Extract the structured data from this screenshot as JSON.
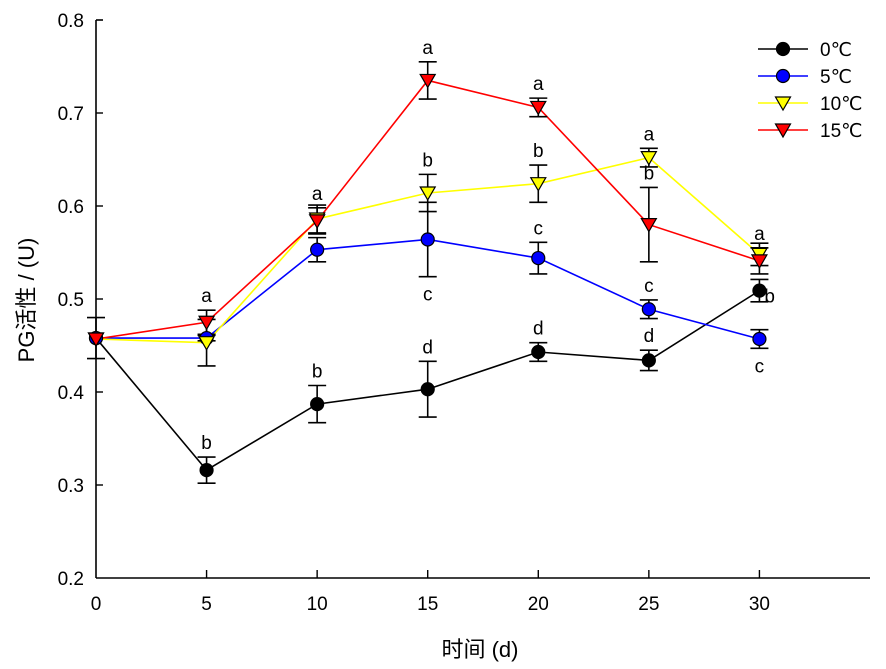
{
  "chart_data": {
    "type": "line",
    "title": "",
    "xlabel": "时间 (d)",
    "ylabel": "PG活性 / (U)",
    "xlim": [
      0,
      35
    ],
    "ylim": [
      0.2,
      0.8
    ],
    "xticks": [
      0,
      5,
      10,
      15,
      20,
      25,
      30
    ],
    "xtick_labels": [
      "0",
      "5",
      "10",
      "15",
      "20",
      "25",
      "30"
    ],
    "yticks": [
      0.2,
      0.3,
      0.4,
      0.5,
      0.6,
      0.7,
      0.8
    ],
    "ytick_labels": [
      "0.2",
      "0.3",
      "0.4",
      "0.5",
      "0.6",
      "0.7",
      "0.8"
    ],
    "grid": false,
    "legend_position": "top-right",
    "x": [
      0,
      5,
      10,
      15,
      20,
      25,
      30
    ],
    "series": [
      {
        "name": "0℃",
        "color": "#000000",
        "marker": "circle",
        "marker_fill": "#000000",
        "values": [
          0.458,
          0.316,
          0.387,
          0.403,
          0.443,
          0.434,
          0.509
        ],
        "errors": [
          0.022,
          0.014,
          0.02,
          0.03,
          0.01,
          0.011,
          0.012
        ],
        "letters": [
          "",
          "b",
          "b",
          "d",
          "d",
          "d",
          "b"
        ],
        "letter_side": [
          "",
          "above",
          "above",
          "above",
          "above",
          "above",
          "right"
        ]
      },
      {
        "name": "5℃",
        "color": "#0000ff",
        "marker": "circle",
        "marker_fill": "#0000ff",
        "values": [
          0.458,
          0.458,
          0.553,
          0.564,
          0.544,
          0.489,
          0.457
        ],
        "errors": [
          0.0,
          0.003,
          0.013,
          0.04,
          0.017,
          0.01,
          0.01
        ],
        "letters": [
          "",
          "",
          "",
          "c",
          "c",
          "c",
          "c"
        ],
        "letter_side": [
          "",
          "",
          "",
          "below",
          "above",
          "above",
          "below"
        ]
      },
      {
        "name": "10℃",
        "color": "#ffff00",
        "marker": "triangle-down",
        "marker_fill": "#ffff00",
        "values": [
          0.457,
          0.453,
          0.586,
          0.614,
          0.624,
          0.652,
          0.548
        ],
        "errors": [
          0.0,
          0.025,
          0.015,
          0.02,
          0.02,
          0.01,
          0.012
        ],
        "letters": [
          "",
          "",
          "",
          "b",
          "b",
          "a",
          ""
        ],
        "letter_side": [
          "",
          "",
          "",
          "above",
          "above",
          "above",
          ""
        ]
      },
      {
        "name": "15℃",
        "color": "#ff0000",
        "marker": "triangle-down",
        "marker_fill": "#ff0000",
        "values": [
          0.457,
          0.475,
          0.584,
          0.735,
          0.706,
          0.58,
          0.541
        ],
        "errors": [
          0.0,
          0.013,
          0.014,
          0.02,
          0.01,
          0.04,
          0.014
        ],
        "letters": [
          "",
          "a",
          "a",
          "a",
          "a",
          "b",
          "a"
        ],
        "letter_side": [
          "",
          "above",
          "above",
          "above",
          "above",
          "above",
          "above"
        ]
      }
    ]
  }
}
